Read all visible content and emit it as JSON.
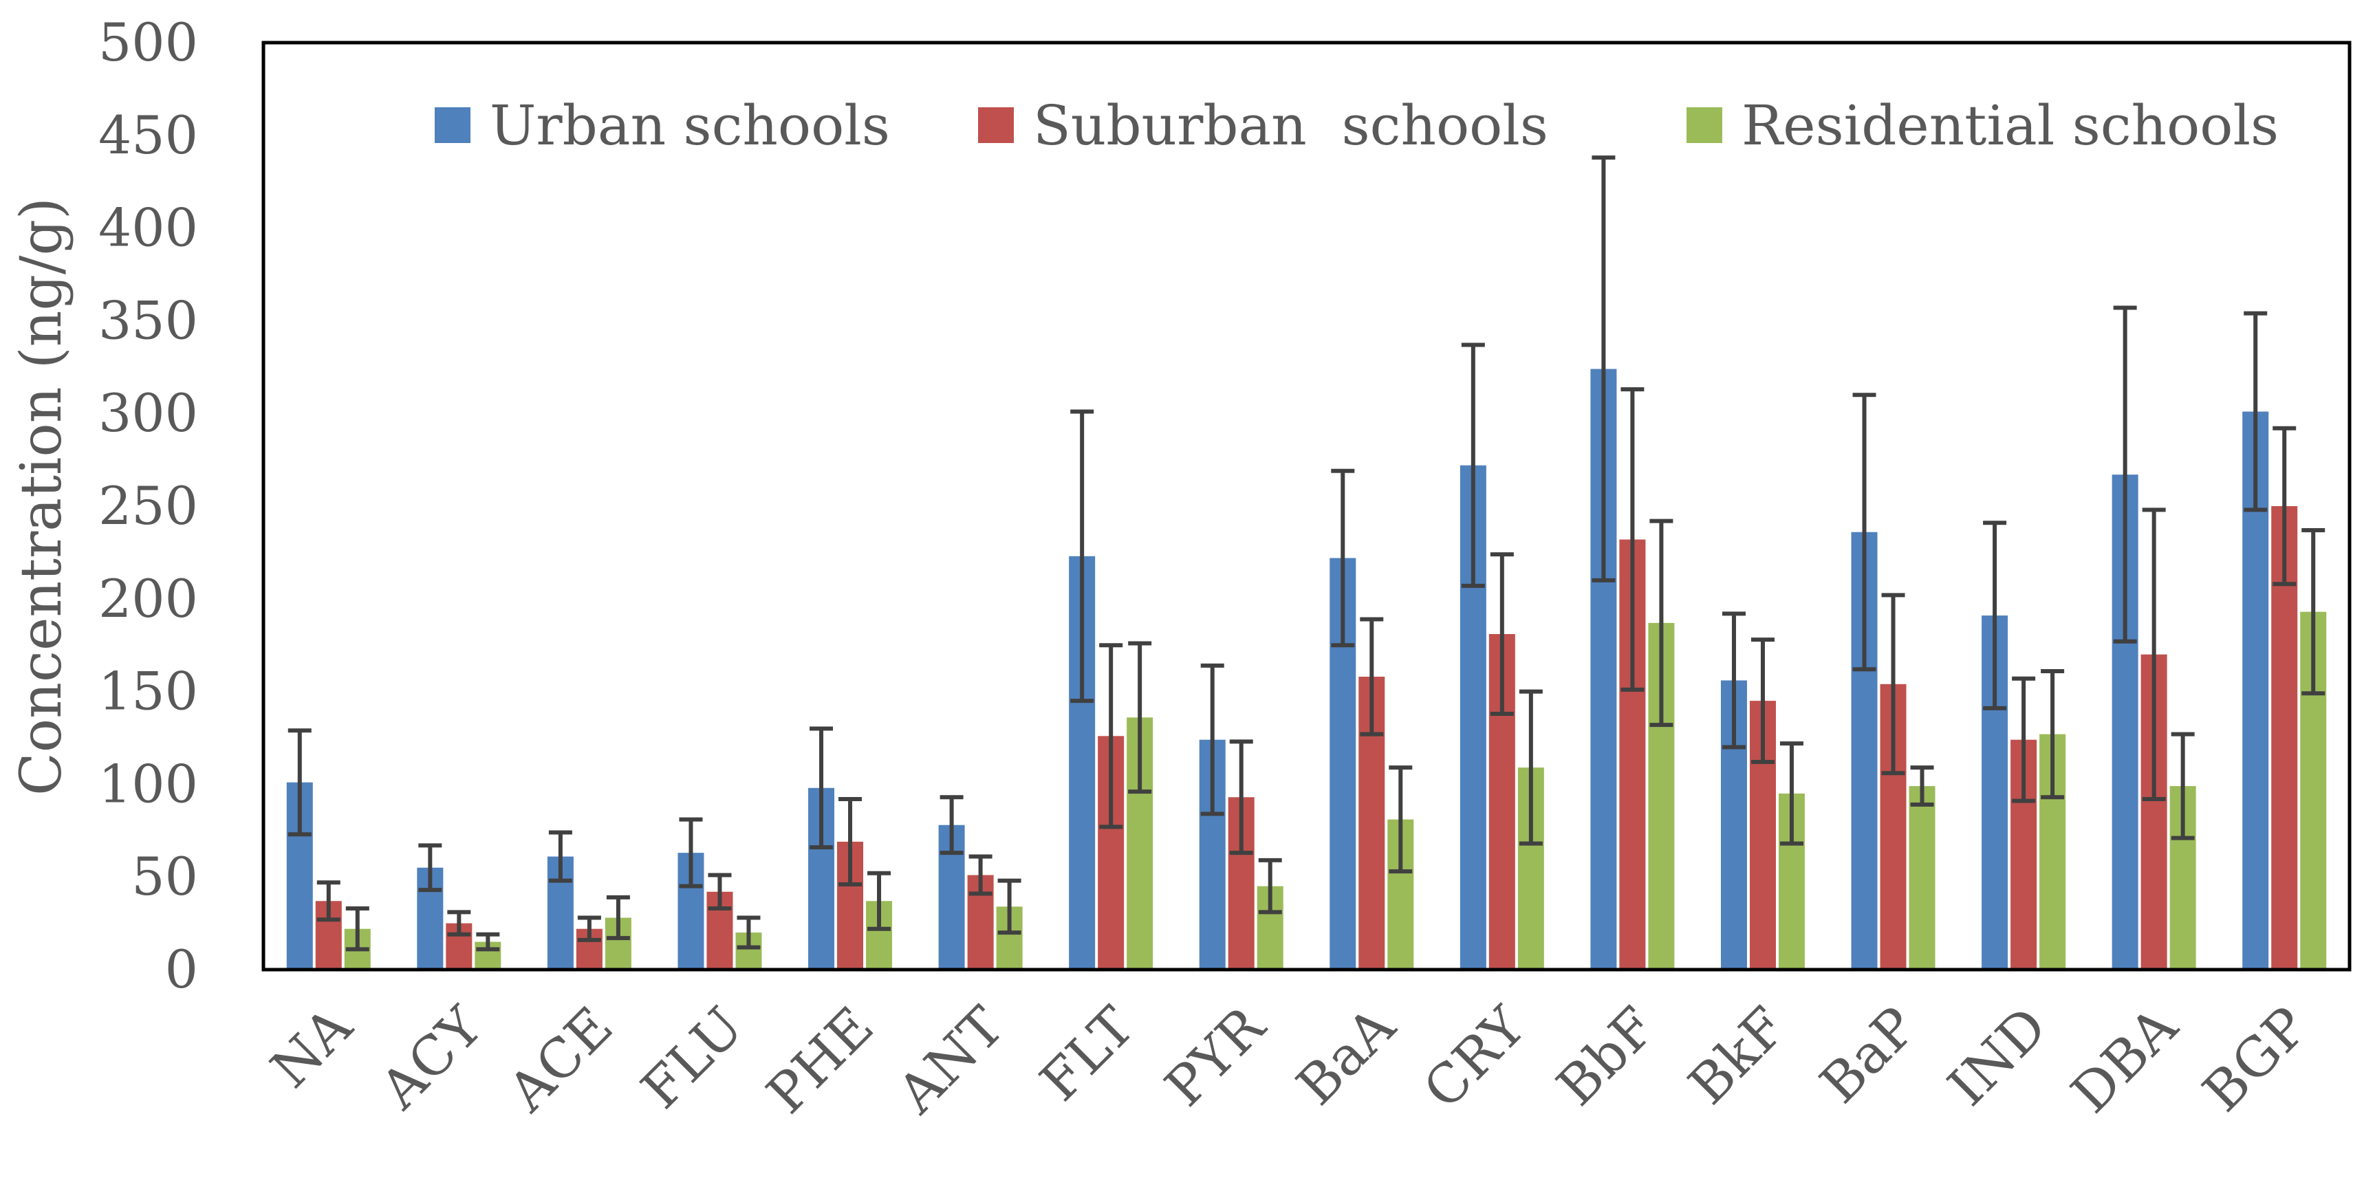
{
  "chart_data": {
    "type": "bar",
    "title": "",
    "xlabel": "",
    "ylabel": "Concentration (ng/g)",
    "ylim": [
      0,
      500
    ],
    "yticks": [
      "0",
      "50",
      "100",
      "150",
      "200",
      "250",
      "300",
      "350",
      "400",
      "450",
      "500"
    ],
    "grid": false,
    "legend_position": "top",
    "categories": [
      "NA",
      "ACY",
      "ACE",
      "FLU",
      "PHE",
      "ANT",
      "FLT",
      "PYR",
      "BaA",
      "CRY",
      "BbF",
      "BkF",
      "BaP",
      "IND",
      "DBA",
      "BGP"
    ],
    "series": [
      {
        "name": "Urban schools",
        "color": "#4F81BD",
        "values": [
          101,
          55,
          61,
          63,
          98,
          78,
          223,
          124,
          222,
          272,
          324,
          156,
          236,
          191,
          267,
          301
        ],
        "error": [
          28,
          12,
          13,
          18,
          32,
          15,
          78,
          40,
          47,
          65,
          114,
          36,
          74,
          50,
          90,
          53
        ]
      },
      {
        "name": "Suburban  schools",
        "color": "#C0504D",
        "values": [
          37,
          25,
          22,
          42,
          69,
          51,
          126,
          93,
          158,
          181,
          232,
          145,
          154,
          124,
          170,
          250
        ],
        "error": [
          10,
          6,
          6,
          9,
          23,
          10,
          49,
          30,
          31,
          43,
          81,
          33,
          48,
          33,
          78,
          42
        ]
      },
      {
        "name": "Residential schools",
        "color": "#9BBB59",
        "values": [
          22,
          15,
          28,
          20,
          37,
          34,
          136,
          45,
          81,
          109,
          187,
          95,
          99,
          127,
          99,
          193
        ],
        "error": [
          11,
          4,
          11,
          8,
          15,
          14,
          40,
          14,
          28,
          41,
          55,
          27,
          10,
          34,
          28,
          44
        ]
      }
    ]
  }
}
